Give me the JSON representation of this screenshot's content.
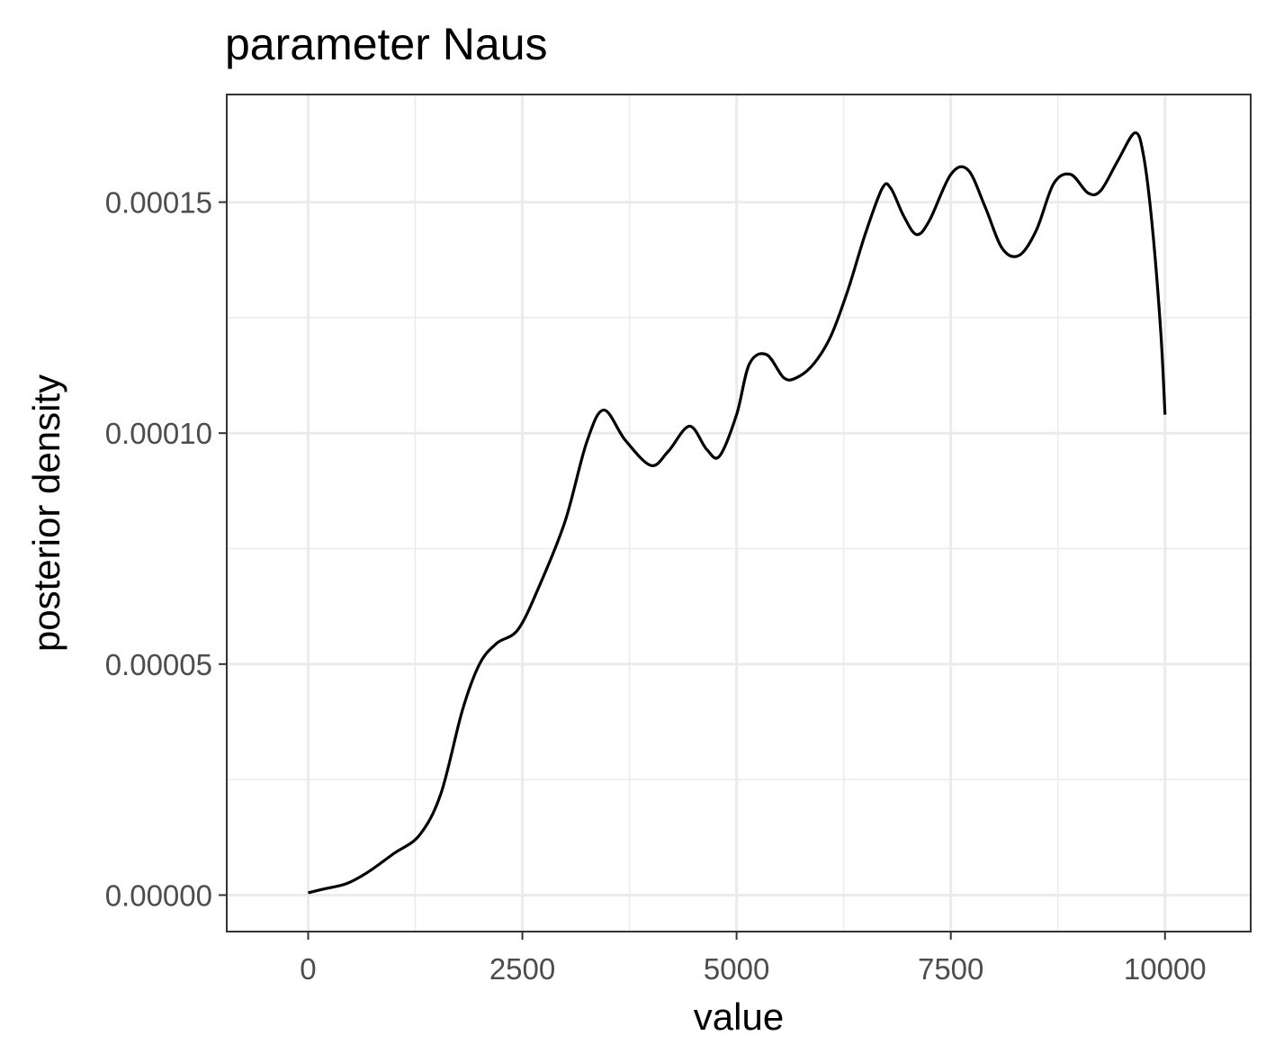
{
  "chart_data": {
    "type": "line",
    "title": "parameter Naus",
    "xlabel": "value",
    "ylabel": "posterior density",
    "xlim": [
      -950,
      11000
    ],
    "ylim": [
      -7.9e-06,
      0.0001733
    ],
    "x_ticks": [
      0,
      2500,
      5000,
      7500,
      10000
    ],
    "x_tick_labels": [
      "0",
      "2500",
      "5000",
      "7500",
      "10000"
    ],
    "x_minor_ticks": [
      1250,
      3750,
      6250,
      8750
    ],
    "y_ticks": [
      0,
      5e-05,
      0.0001,
      0.00015
    ],
    "y_tick_labels": [
      "0.00000",
      "0.00005",
      "0.00010",
      "0.00015"
    ],
    "y_minor_ticks": [
      2.5e-05,
      7.5e-05,
      0.000125
    ],
    "grid": true,
    "series": [
      {
        "line_color": "#000000",
        "x": [
          0,
          200,
          450,
          700,
          1000,
          1300,
          1550,
          1800,
          2000,
          2200,
          2450,
          2700,
          3000,
          3250,
          3450,
          3700,
          4000,
          4200,
          4450,
          4650,
          4800,
          5000,
          5150,
          5350,
          5550,
          5700,
          5900,
          6100,
          6300,
          6500,
          6700,
          6800,
          6950,
          7100,
          7250,
          7500,
          7700,
          7900,
          8100,
          8300,
          8500,
          8700,
          8900,
          9100,
          9250,
          9450,
          9650,
          9750,
          9850,
          9950,
          10000
        ],
        "y": [
          5e-07,
          1.4e-06,
          2.5e-06,
          5e-06,
          9e-06,
          1.3e-05,
          2.2e-05,
          4e-05,
          5e-05,
          5.45e-05,
          5.75e-05,
          6.7e-05,
          8.1e-05,
          9.8e-05,
          0.000105,
          9.85e-05,
          9.3e-05,
          9.6e-05,
          0.0001015,
          9.65e-05,
          9.5e-05,
          0.000104,
          0.000115,
          0.000117,
          0.000112,
          0.000112,
          0.000115,
          0.000121,
          0.000131,
          0.000143,
          0.000153,
          0.000153,
          0.000147,
          0.000143,
          0.000146,
          0.000156,
          0.000157,
          0.000149,
          0.00014,
          0.0001385,
          0.000144,
          0.000154,
          0.000156,
          0.000152,
          0.0001525,
          0.000159,
          0.000165,
          0.00016,
          0.000145,
          0.000122,
          0.000104
        ]
      }
    ]
  }
}
